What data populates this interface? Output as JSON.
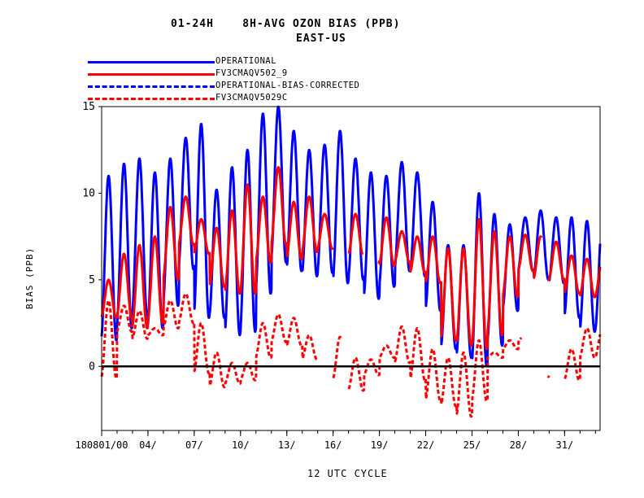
{
  "title_line1": "01-24H    8H-AVG OZON BIAS (PPB)",
  "title_line2": "EAST-US",
  "legend": [
    {
      "label": "OPERATIONAL",
      "color": "#0000ff",
      "dash": false
    },
    {
      "label": "FV3CMAQV502_9",
      "color": "#ff0000",
      "dash": false
    },
    {
      "label": "OPERATIONAL-BIAS-CORRECTED",
      "color": "#0000ff",
      "dash": true
    },
    {
      "label": "FV3CMAQV5029C",
      "color": "#ff0000",
      "dash": true
    }
  ],
  "chart_data": {
    "type": "line",
    "xlabel": "12 UTC CYCLE",
    "ylabel": "BIAS (PPB)",
    "ylim": [
      -3.7,
      15
    ],
    "yticks": [
      0,
      5,
      10,
      15
    ],
    "xlim": [
      1,
      33.3
    ],
    "xticks": [
      {
        "day": 1,
        "label": "180801/00"
      },
      {
        "day": 4,
        "label": "04/"
      },
      {
        "day": 7,
        "label": "07/"
      },
      {
        "day": 10,
        "label": "10/"
      },
      {
        "day": 13,
        "label": "13/"
      },
      {
        "day": 16,
        "label": "16/"
      },
      {
        "day": 19,
        "label": "19/"
      },
      {
        "day": 22,
        "label": "22/"
      },
      {
        "day": 25,
        "label": "25/"
      },
      {
        "day": 28,
        "label": "28/"
      },
      {
        "day": 31,
        "label": "31/"
      }
    ],
    "zero_line": true,
    "series": [
      {
        "name": "OPERATIONAL",
        "color": "#0000ff",
        "dash": false,
        "daily_max": [
          11.0,
          11.7,
          12.0,
          11.2,
          12.0,
          13.2,
          14.0,
          10.2,
          11.5,
          12.5,
          14.6,
          15.0,
          13.6,
          12.5,
          12.8,
          13.6,
          12.0,
          11.2,
          11.0,
          11.8,
          11.2,
          9.5,
          7.0,
          7.0,
          10.0,
          8.8,
          8.2,
          8.6,
          9.0,
          8.6,
          8.6,
          8.4
        ],
        "daily_min": [
          1.5,
          2.2,
          3.0,
          2.2,
          3.5,
          5.6,
          2.8,
          2.8,
          1.8,
          2.0,
          4.2,
          6.0,
          5.5,
          5.2,
          5.4,
          4.8,
          5.0,
          3.9,
          4.6,
          5.5,
          5.2,
          3.2,
          1.0,
          0.5,
          0.0,
          1.2,
          3.2,
          5.5,
          5.0,
          4.8,
          2.8,
          2.0
        ]
      },
      {
        "name": "FV3CMAQV502_9",
        "color": "#ff0000",
        "dash": false,
        "daily_max": [
          5.0,
          6.5,
          7.0,
          7.5,
          9.2,
          9.8,
          8.5,
          8.0,
          9.0,
          10.5,
          9.8,
          11.5,
          9.5,
          9.8,
          8.8,
          null,
          8.8,
          8.8,
          8.6,
          7.8,
          7.5,
          7.5,
          6.8,
          6.8,
          8.5,
          7.8,
          7.5,
          7.6,
          7.5,
          7.2,
          6.4,
          6.2
        ],
        "daily_min": [
          2.8,
          2.8,
          2.2,
          2.5,
          5.0,
          7.0,
          6.5,
          4.6,
          4.2,
          4.2,
          6.0,
          7.0,
          6.2,
          6.6,
          6.8,
          null,
          6.4,
          6.0,
          5.8,
          6.0,
          5.4,
          4.8,
          1.5,
          1.2,
          1.0,
          1.8,
          4.0,
          5.5,
          5.0,
          5.0,
          4.2,
          4.0
        ],
        "gaps": [
          [
            17.9,
            18.9
          ],
          [
            29.5,
            29.9
          ]
        ]
      },
      {
        "name": "OPERATIONAL-BIAS-CORRECTED",
        "color": "#0000ff",
        "dash": true,
        "note_hidden_by_red": true
      },
      {
        "name": "FV3CMAQV5029C",
        "color": "#ff0000",
        "dash": true,
        "daily_max": [
          3.8,
          3.5,
          3.2,
          2.2,
          3.8,
          4.2,
          2.5,
          0.8,
          0.2,
          0.2,
          2.5,
          3.0,
          2.8,
          1.8,
          1.5,
          1.7,
          0.5,
          0.4,
          1.2,
          2.3,
          2.2,
          1.0,
          0.5,
          0.8,
          1.5,
          0.8,
          1.5,
          1.8,
          2.0,
          null,
          1.0,
          2.2
        ],
        "daily_min": [
          -0.7,
          2.0,
          1.6,
          1.8,
          2.2,
          2.5,
          -0.4,
          -1.2,
          -1.0,
          -0.8,
          0.5,
          1.4,
          1.2,
          0.4,
          null,
          -0.8,
          -1.4,
          -0.5,
          0.5,
          0.2,
          -0.8,
          -2.0,
          -2.3,
          -2.9,
          -2.0,
          0.5,
          1.0,
          1.5,
          -0.6,
          null,
          -0.8,
          0.5
        ],
        "gaps": [
          [
            16.5,
            17.0
          ],
          [
            28.2,
            29.9
          ]
        ]
      }
    ]
  }
}
